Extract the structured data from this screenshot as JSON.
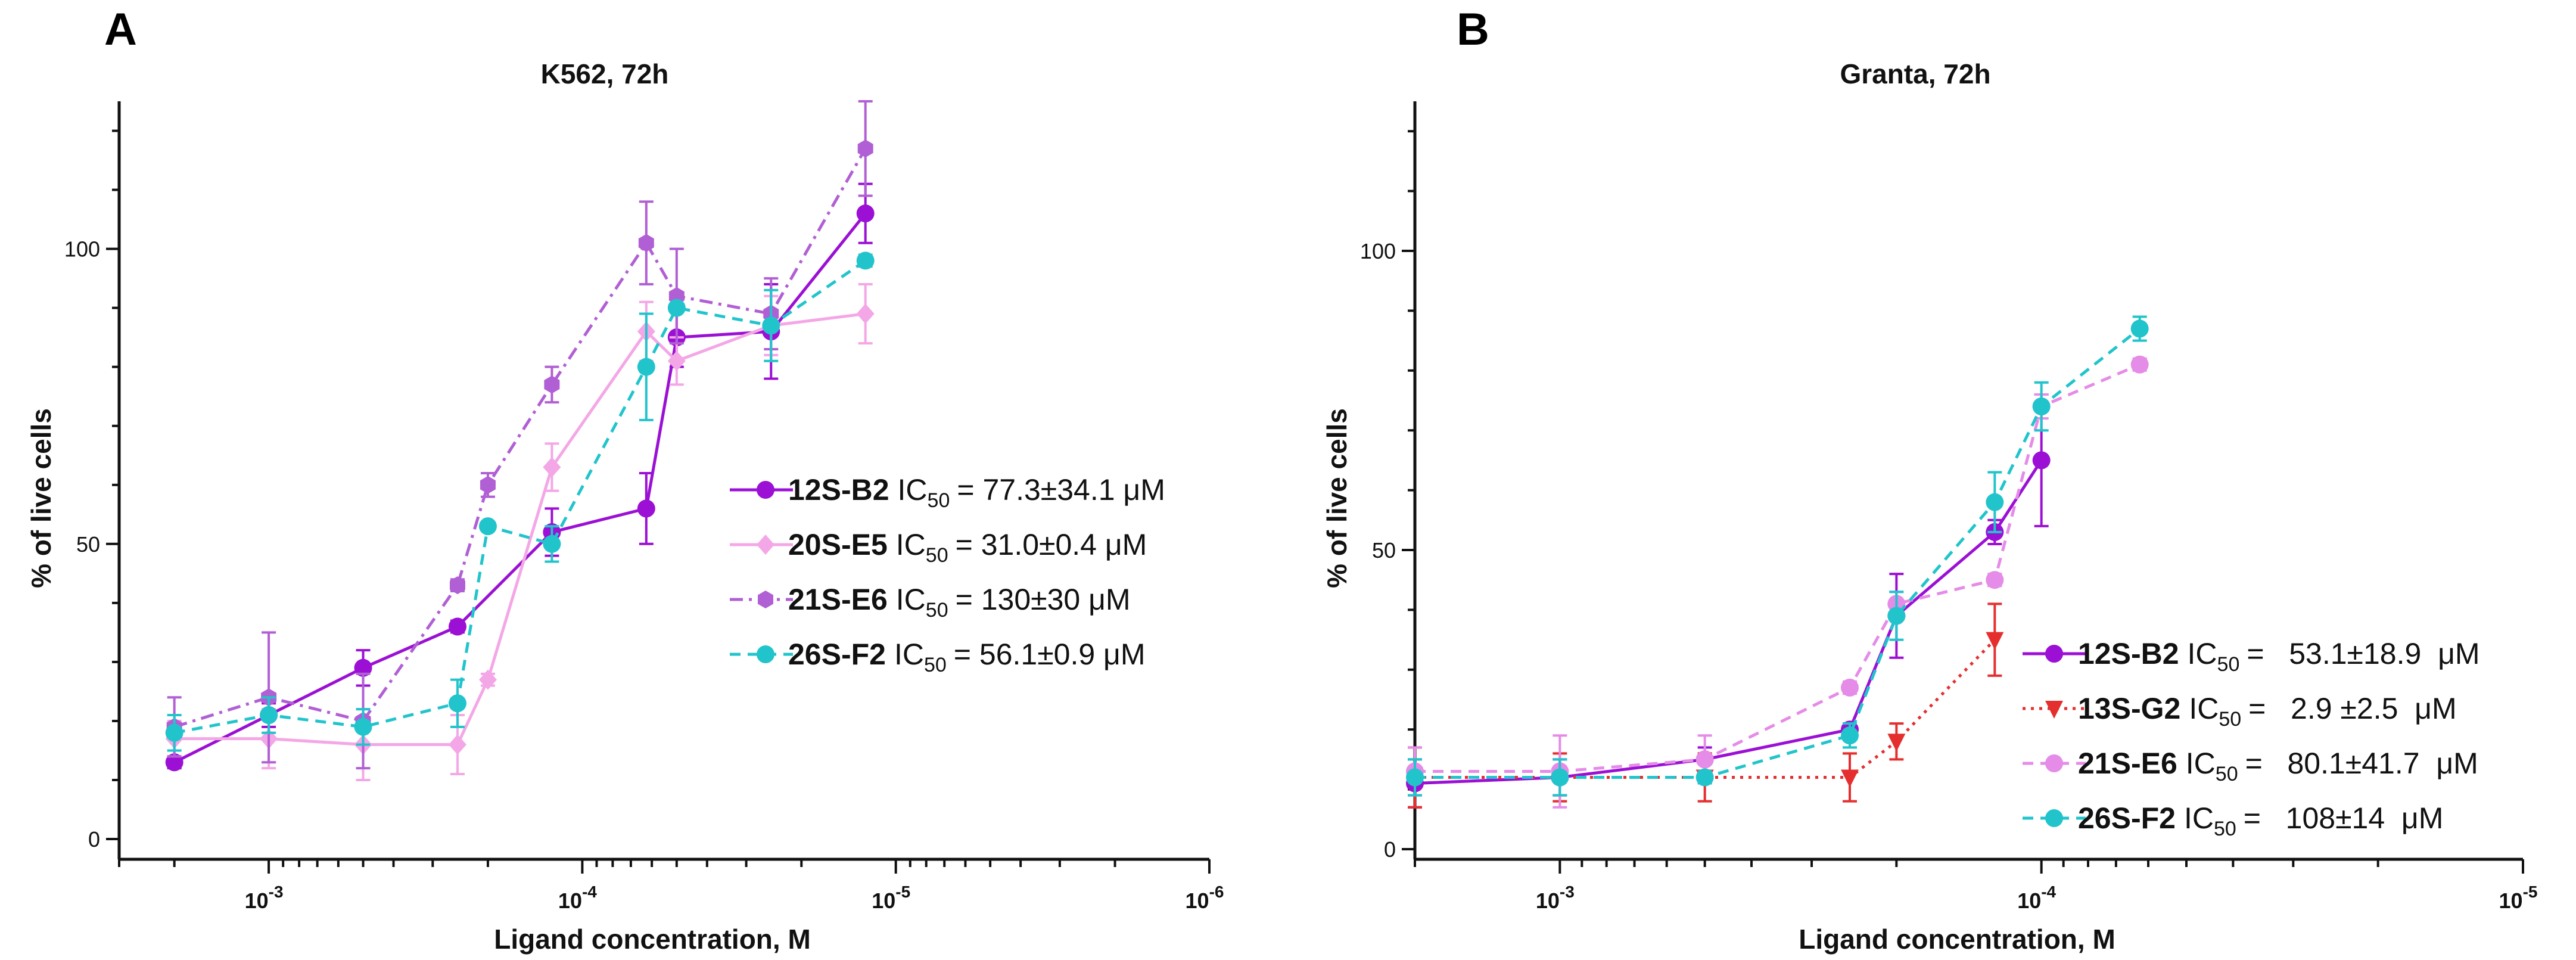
{
  "chart_data": [
    {
      "panel": "A",
      "type": "line",
      "title": "K562, 72h",
      "xlabel": "Ligand concentration, M",
      "ylabel": "% of live cells",
      "x_scale": "log, decreasing",
      "xlim": [
        0.003,
        1e-06
      ],
      "ylim": [
        0,
        125
      ],
      "x_ticks": [
        {
          "value": 0.001,
          "base": "10",
          "exp": "-3"
        },
        {
          "value": 0.0001,
          "base": "10",
          "exp": "-4"
        },
        {
          "value": 1e-05,
          "base": "10",
          "exp": "-5"
        },
        {
          "value": 1e-06,
          "base": "10",
          "exp": "-6"
        }
      ],
      "y_ticks": [
        "0",
        "50",
        "100"
      ],
      "ic50_label": "IC",
      "ic50_sub": "50",
      "legend_position": "center-right",
      "x": [
        0.002,
        0.001,
        0.0005,
        0.00025,
        0.0002,
        0.000125,
        6.25e-05,
        5e-05,
        2.5e-05,
        1.25e-05
      ],
      "series": [
        {
          "name": "12S-B2",
          "ic50": "= 77.3±34.1 μM",
          "color": "#9b10d4",
          "dash": "solid",
          "marker": "circle",
          "values": [
            13,
            21,
            29,
            36,
            null,
            52,
            56,
            85,
            86,
            106
          ],
          "errors": [
            1,
            2,
            3,
            1,
            null,
            4,
            6,
            5,
            8,
            5
          ]
        },
        {
          "name": "20S-E5",
          "ic50": "= 31.0±0.4 μM",
          "color": "#f4a7e6",
          "dash": "solid",
          "marker": "diamond",
          "values": [
            17,
            17,
            16,
            16,
            27,
            63,
            86,
            81,
            87,
            89
          ],
          "errors": [
            3,
            5,
            6,
            5,
            1,
            4,
            5,
            4,
            5,
            5
          ]
        },
        {
          "name": "21S-E6",
          "ic50": "= 130±30 μM",
          "color": "#b15fd4",
          "dash": "dashdot",
          "marker": "hexagon",
          "values": [
            19,
            24,
            20,
            43,
            60,
            77,
            101,
            92,
            89,
            117
          ],
          "errors": [
            5,
            11,
            8,
            1,
            2,
            3,
            7,
            8,
            6,
            8
          ]
        },
        {
          "name": "26S-F2",
          "ic50": "= 56.1±0.9 μM",
          "color": "#22c4cc",
          "dash": "dashed",
          "marker": "circle",
          "values": [
            18,
            21,
            19,
            23,
            53,
            50,
            80,
            90,
            87,
            98
          ],
          "errors": [
            3,
            3,
            3,
            4,
            null,
            3,
            9,
            null,
            6,
            1
          ]
        }
      ]
    },
    {
      "panel": "B",
      "type": "line",
      "title": "Granta, 72h",
      "xlabel": "Ligand concentration, M",
      "ylabel": "% of live cells",
      "x_scale": "log, decreasing",
      "xlim": [
        0.002,
        1e-05
      ],
      "ylim": [
        0,
        125
      ],
      "x_ticks": [
        {
          "value": 0.001,
          "base": "10",
          "exp": "-3"
        },
        {
          "value": 0.0001,
          "base": "10",
          "exp": "-4"
        },
        {
          "value": 1e-05,
          "base": "10",
          "exp": "-5"
        }
      ],
      "y_ticks": [
        "0",
        "50",
        "100"
      ],
      "ic50_label": "IC",
      "ic50_sub": "50",
      "legend_position": "bottom-right",
      "x": [
        0.002,
        0.001,
        0.0005,
        0.00025,
        0.0002,
        0.000125,
        0.0001,
        6.25e-05
      ],
      "series": [
        {
          "name": "12S-B2",
          "ic50": "=   53.1±18.9  μM",
          "color": "#9b10d4",
          "dash": "solid",
          "marker": "circle",
          "values": [
            11,
            12,
            15,
            20,
            39,
            53,
            65,
            null
          ],
          "errors": [
            4,
            3,
            2,
            1,
            7,
            2,
            11,
            null
          ]
        },
        {
          "name": "13S-G2",
          "ic50": "=   2.9 ±2.5  μM",
          "color": "#e52f2f",
          "dash": "dotted",
          "marker": "triangle-down",
          "values": [
            12,
            12,
            12,
            12,
            18,
            35,
            null,
            null
          ],
          "errors": [
            5,
            4,
            4,
            4,
            3,
            6,
            null,
            null
          ]
        },
        {
          "name": "21S-E6",
          "ic50": "=   80.1±41.7  μM",
          "color": "#e58be8",
          "dash": "dashed",
          "marker": "circle",
          "values": [
            13,
            13,
            15,
            27,
            41,
            45,
            74,
            81
          ],
          "errors": [
            4,
            6,
            4,
            1,
            2,
            1,
            2,
            1
          ]
        },
        {
          "name": "26S-F2",
          "ic50": "=   108±14  μM",
          "color": "#22c4cc",
          "dash": "dashed",
          "marker": "circle",
          "values": [
            12,
            12,
            12,
            19,
            39,
            58,
            74,
            87
          ],
          "errors": [
            3,
            3,
            1,
            2,
            4,
            5,
            4,
            2
          ]
        }
      ]
    }
  ]
}
